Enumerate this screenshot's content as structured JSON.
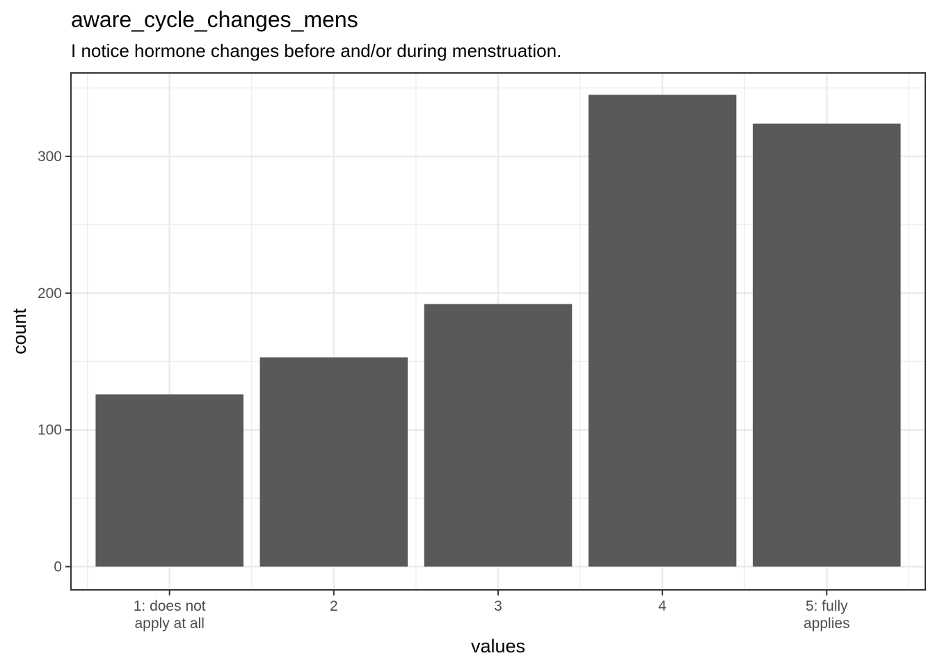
{
  "chart_data": {
    "type": "bar",
    "title": "aware_cycle_changes_mens",
    "subtitle": "I notice hormone changes before and/or during menstruation.",
    "xlabel": "values",
    "ylabel": "count",
    "categories": [
      [
        "1: does not",
        "apply at all"
      ],
      [
        "2"
      ],
      [
        "3"
      ],
      [
        "4"
      ],
      [
        "5: fully",
        "applies"
      ]
    ],
    "values": [
      126,
      153,
      192,
      345,
      324
    ],
    "ylim": [
      -17,
      361
    ],
    "yticks": [
      0,
      100,
      200,
      300
    ],
    "grid": true,
    "bar_color": "#595959",
    "grid_color": "#ebebeb",
    "panel_border_color": "#333333"
  }
}
